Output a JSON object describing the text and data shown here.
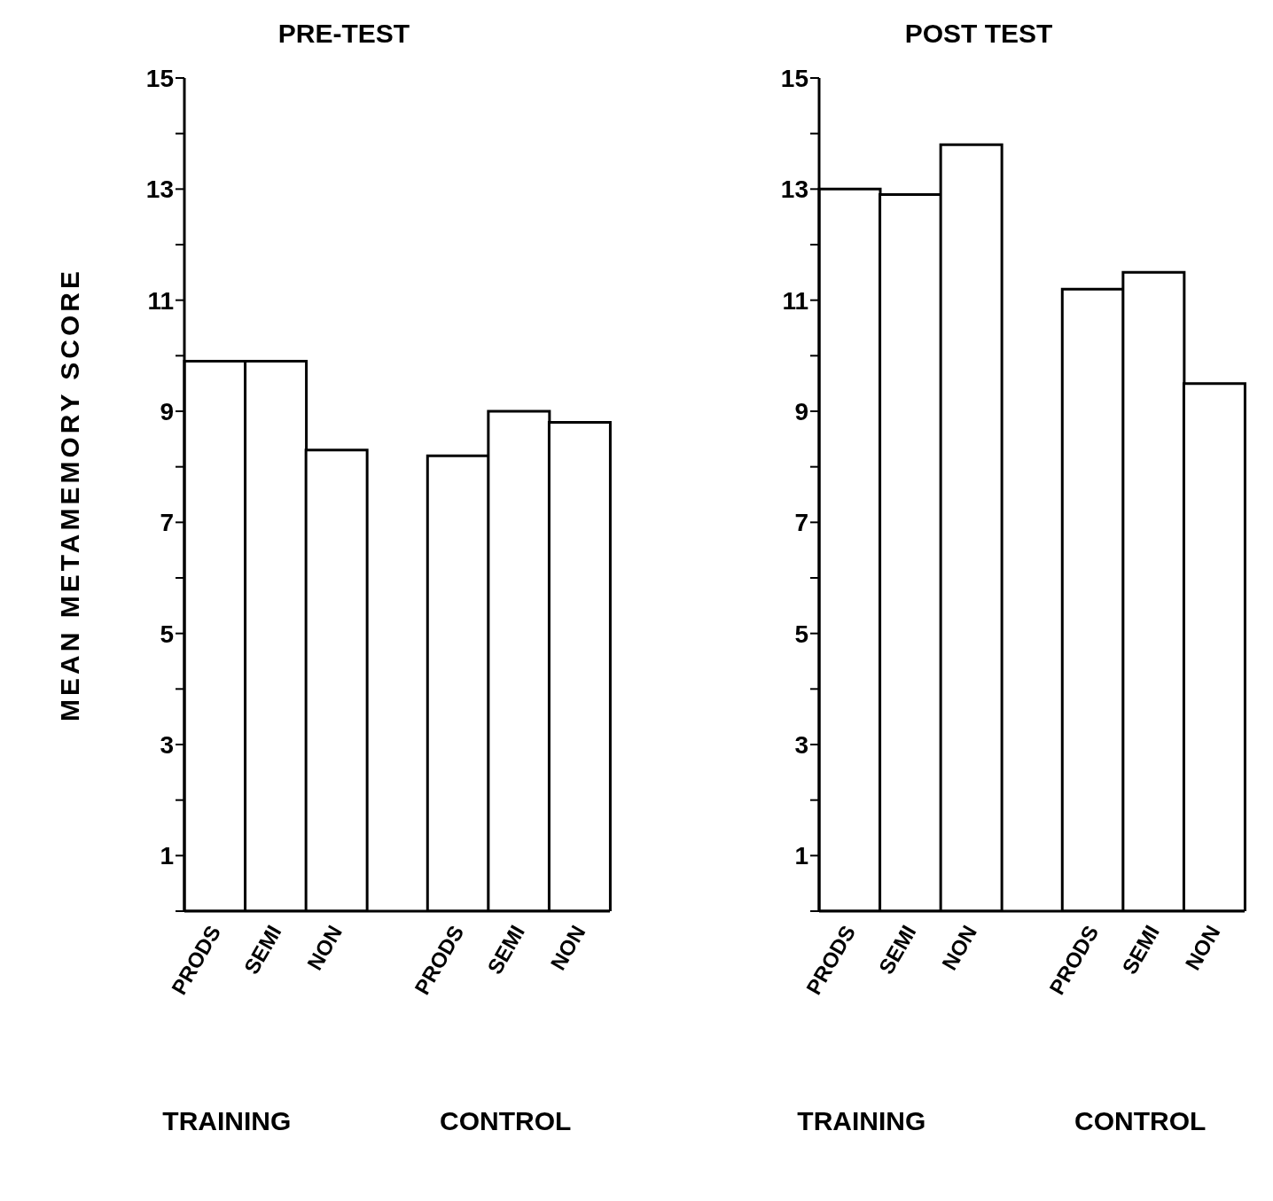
{
  "chart_data": [
    {
      "type": "bar",
      "title": "PRE-TEST",
      "ylabel": "MEAN METAMEMORY SCORE",
      "categories": [
        "PRODS",
        "SEMI",
        "NON",
        null,
        "PRODS",
        "SEMI",
        "NON"
      ],
      "values": [
        9.9,
        9.9,
        8.3,
        null,
        8.2,
        9.0,
        8.8
      ],
      "color": "#ffffff",
      "ylim": [
        0,
        15
      ],
      "yticks": [
        {
          "value": 0,
          "label": null
        },
        1,
        {
          "value": 2,
          "label": null
        },
        3,
        {
          "value": 4,
          "label": null
        },
        5,
        {
          "value": 6,
          "label": null
        },
        7,
        {
          "value": 8,
          "label": null
        },
        9,
        {
          "value": 10,
          "label": null
        },
        11,
        {
          "value": 12,
          "label": null
        },
        13,
        {
          "value": 14,
          "label": null
        },
        15
      ],
      "grid": false,
      "annotations": [
        "TRAINING",
        "CONTROL"
      ]
    },
    {
      "type": "bar",
      "title": "POST TEST",
      "categories": [
        "PRODS",
        "SEMI",
        "NON",
        null,
        "PRODS",
        "SEMI",
        "NON"
      ],
      "values": [
        13.0,
        12.9,
        13.8,
        null,
        11.2,
        11.5,
        9.5
      ],
      "color": "#ffffff",
      "ylim": [
        0,
        15
      ],
      "yticks": [
        {
          "value": 0,
          "label": null
        },
        1,
        {
          "value": 2,
          "label": null
        },
        3,
        {
          "value": 4,
          "label": null
        },
        5,
        {
          "value": 6,
          "label": null
        },
        7,
        {
          "value": 8,
          "label": null
        },
        9,
        {
          "value": 10,
          "label": null
        },
        11,
        {
          "value": 12,
          "label": null
        },
        13,
        {
          "value": 14,
          "label": null
        },
        15
      ],
      "grid": false,
      "annotations": [
        "TRAINING",
        "CONTROL"
      ]
    }
  ]
}
